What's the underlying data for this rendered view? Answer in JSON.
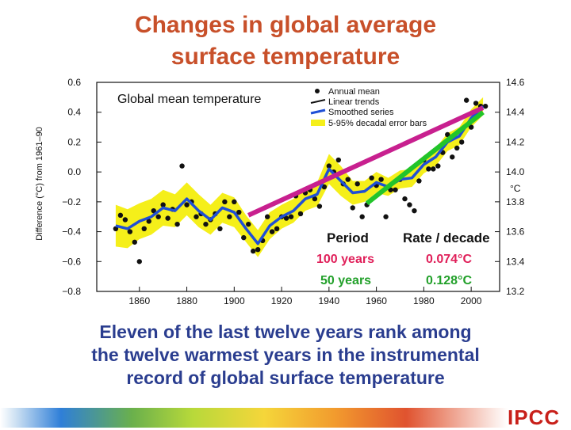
{
  "slide": {
    "title_line1": "Changes in global average",
    "title_line2": "surface temperature",
    "caption_line1": "Eleven of the last twelve years rank among",
    "caption_line2": "the twelve warmest years in the instrumental",
    "caption_line3": "record of global surface temperature",
    "brand": "IPCC"
  },
  "colors": {
    "title": "#c8502a",
    "caption": "#2a3d8f",
    "smooth": "#1f4fd6",
    "band": "#f5ef1a",
    "trend100": "#c8208f",
    "trend50": "#22c42a",
    "rate100": "#e0205a",
    "rate50": "#22a02a",
    "brand": "#c8201a"
  },
  "chart_data": {
    "type": "line",
    "title": "Global mean temperature",
    "ylabel": "Difference (°C) from 1961–90",
    "y2label": "°C",
    "xlim": [
      1842,
      2012
    ],
    "ylim": [
      -0.8,
      0.6
    ],
    "xticks": [
      1860,
      1880,
      1900,
      1920,
      1940,
      1960,
      1980,
      2000
    ],
    "yticks": [
      -0.8,
      -0.6,
      -0.4,
      -0.2,
      0.0,
      0.2,
      0.4,
      0.6
    ],
    "ytick_labels": [
      "−0.8",
      "−0.6",
      "−0.4",
      "−0.2",
      "0.0",
      "0.2",
      "0.4",
      "0.6"
    ],
    "y2ticks": [
      13.2,
      13.4,
      13.6,
      13.8,
      14.0,
      14.2,
      14.4,
      14.6
    ],
    "y2tick_labels": [
      "13.2",
      "13.4",
      "13.6",
      "13.8",
      "14.0",
      "14.2",
      "14.4",
      "14.6"
    ],
    "legend": [
      {
        "label": "Annual mean",
        "kind": "dot"
      },
      {
        "label": "Linear trends",
        "kind": "line"
      },
      {
        "label": "Smoothed series",
        "kind": "smooth"
      },
      {
        "label": "5-95% decadal error bars",
        "kind": "band"
      }
    ],
    "smoothed": {
      "x": [
        1850,
        1855,
        1860,
        1865,
        1870,
        1875,
        1880,
        1885,
        1890,
        1895,
        1900,
        1905,
        1910,
        1915,
        1920,
        1925,
        1930,
        1935,
        1940,
        1945,
        1950,
        1955,
        1960,
        1965,
        1970,
        1975,
        1980,
        1985,
        1990,
        1995,
        2000,
        2005
      ],
      "y": [
        -0.36,
        -0.38,
        -0.33,
        -0.3,
        -0.24,
        -0.26,
        -0.18,
        -0.26,
        -0.32,
        -0.24,
        -0.27,
        -0.38,
        -0.48,
        -0.36,
        -0.3,
        -0.26,
        -0.18,
        -0.15,
        0.02,
        -0.06,
        -0.14,
        -0.13,
        -0.07,
        -0.1,
        -0.05,
        -0.04,
        0.05,
        0.1,
        0.2,
        0.24,
        0.36,
        0.44
      ],
      "err": [
        0.14,
        0.13,
        0.12,
        0.12,
        0.12,
        0.11,
        0.11,
        0.11,
        0.1,
        0.1,
        0.1,
        0.09,
        0.09,
        0.09,
        0.08,
        0.08,
        0.08,
        0.08,
        0.1,
        0.1,
        0.08,
        0.07,
        0.07,
        0.06,
        0.06,
        0.06,
        0.06,
        0.06,
        0.06,
        0.06,
        0.06,
        0.06
      ]
    },
    "annual": {
      "x": [
        1850,
        1852,
        1854,
        1856,
        1858,
        1860,
        1862,
        1864,
        1866,
        1868,
        1870,
        1872,
        1874,
        1876,
        1878,
        1880,
        1882,
        1884,
        1886,
        1888,
        1890,
        1892,
        1894,
        1896,
        1898,
        1900,
        1902,
        1904,
        1906,
        1908,
        1910,
        1912,
        1914,
        1916,
        1918,
        1920,
        1922,
        1924,
        1926,
        1928,
        1930,
        1932,
        1934,
        1936,
        1938,
        1940,
        1942,
        1944,
        1946,
        1948,
        1950,
        1952,
        1954,
        1956,
        1958,
        1960,
        1962,
        1964,
        1966,
        1968,
        1970,
        1972,
        1974,
        1976,
        1978,
        1980,
        1982,
        1984,
        1986,
        1988,
        1990,
        1992,
        1994,
        1996,
        1998,
        2000,
        2002,
        2004,
        2006
      ],
      "y": [
        -0.38,
        -0.29,
        -0.32,
        -0.4,
        -0.47,
        -0.6,
        -0.38,
        -0.33,
        -0.26,
        -0.3,
        -0.22,
        -0.31,
        -0.25,
        -0.35,
        0.04,
        -0.22,
        -0.2,
        -0.3,
        -0.28,
        -0.35,
        -0.32,
        -0.28,
        -0.38,
        -0.2,
        -0.3,
        -0.2,
        -0.27,
        -0.44,
        -0.35,
        -0.53,
        -0.52,
        -0.46,
        -0.3,
        -0.4,
        -0.38,
        -0.3,
        -0.31,
        -0.3,
        -0.16,
        -0.28,
        -0.14,
        -0.12,
        -0.18,
        -0.23,
        -0.1,
        0.04,
        0.0,
        0.08,
        -0.08,
        -0.05,
        -0.24,
        -0.08,
        -0.3,
        -0.22,
        -0.04,
        -0.09,
        -0.05,
        -0.3,
        -0.12,
        -0.12,
        -0.05,
        -0.18,
        -0.22,
        -0.26,
        -0.06,
        0.08,
        0.02,
        0.02,
        0.04,
        0.13,
        0.25,
        0.1,
        0.16,
        0.2,
        0.48,
        0.3,
        0.46,
        0.44,
        0.44
      ]
    },
    "trends": [
      {
        "name": "100 years",
        "x": [
          1906,
          2005
        ],
        "y": [
          -0.29,
          0.43
        ],
        "rate": "0.074°C"
      },
      {
        "name": "50 years",
        "x": [
          1956,
          2005
        ],
        "y": [
          -0.21,
          0.4
        ],
        "rate": "0.128°C"
      }
    ],
    "table": {
      "col1": "Period",
      "col2": "Rate / decade"
    }
  }
}
